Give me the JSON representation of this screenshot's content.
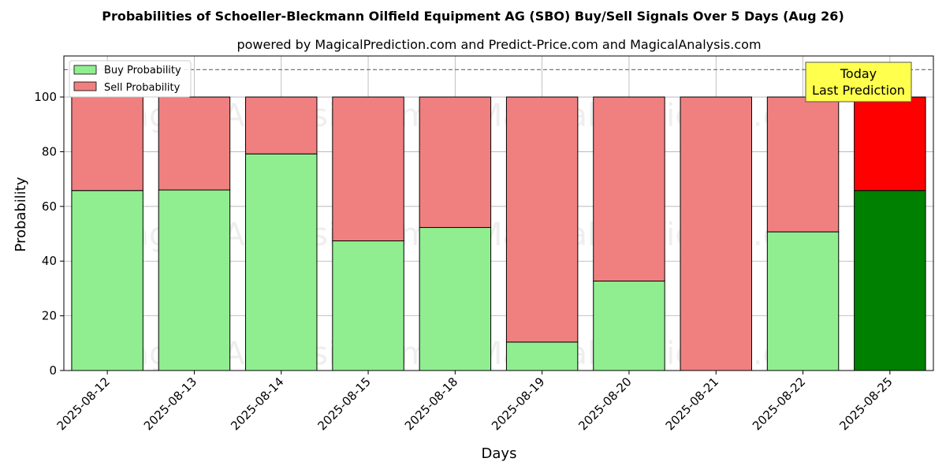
{
  "chart_data": {
    "type": "bar",
    "stacked": true,
    "title": "Probabilities of Schoeller-Bleckmann Oilfield Equipment AG (SBO) Buy/Sell Signals Over 5 Days (Aug 26)",
    "subtitle": "powered by MagicalPrediction.com and Predict-Price.com and MagicalAnalysis.com",
    "xlabel": "Days",
    "ylabel": "Probability",
    "ylim": [
      0,
      115
    ],
    "yticks": [
      0,
      20,
      40,
      60,
      80,
      100
    ],
    "grid": true,
    "legend_position": "top-left",
    "reference_line": 110,
    "categories": [
      "2025-08-12",
      "2025-08-13",
      "2025-08-14",
      "2025-08-15",
      "2025-08-18",
      "2025-08-19",
      "2025-08-20",
      "2025-08-21",
      "2025-08-22",
      "2025-08-25"
    ],
    "series": [
      {
        "name": "Buy Probability",
        "values": [
          65.8,
          66.0,
          79.2,
          47.4,
          52.3,
          10.4,
          32.7,
          0.0,
          50.7,
          65.8
        ],
        "color": "#90ee90",
        "highlight_color": "#008000"
      },
      {
        "name": "Sell Probability",
        "values": [
          34.2,
          34.0,
          20.8,
          52.6,
          47.7,
          89.6,
          67.3,
          100.0,
          49.3,
          34.2
        ],
        "color": "#f08080",
        "highlight_color": "#ff0000"
      }
    ],
    "highlight_index": 9,
    "annotation": {
      "line1": "Today",
      "line2": "Last Prediction",
      "color": "#ffff4d"
    },
    "watermarks": [
      "MagicalAnalysis.com",
      "MagicalPrediction.com",
      "MagicalAnalysis.com",
      "MagicalPrediction.com",
      "MagicalAnalysis.com",
      "MagicalPrediction.com"
    ]
  }
}
